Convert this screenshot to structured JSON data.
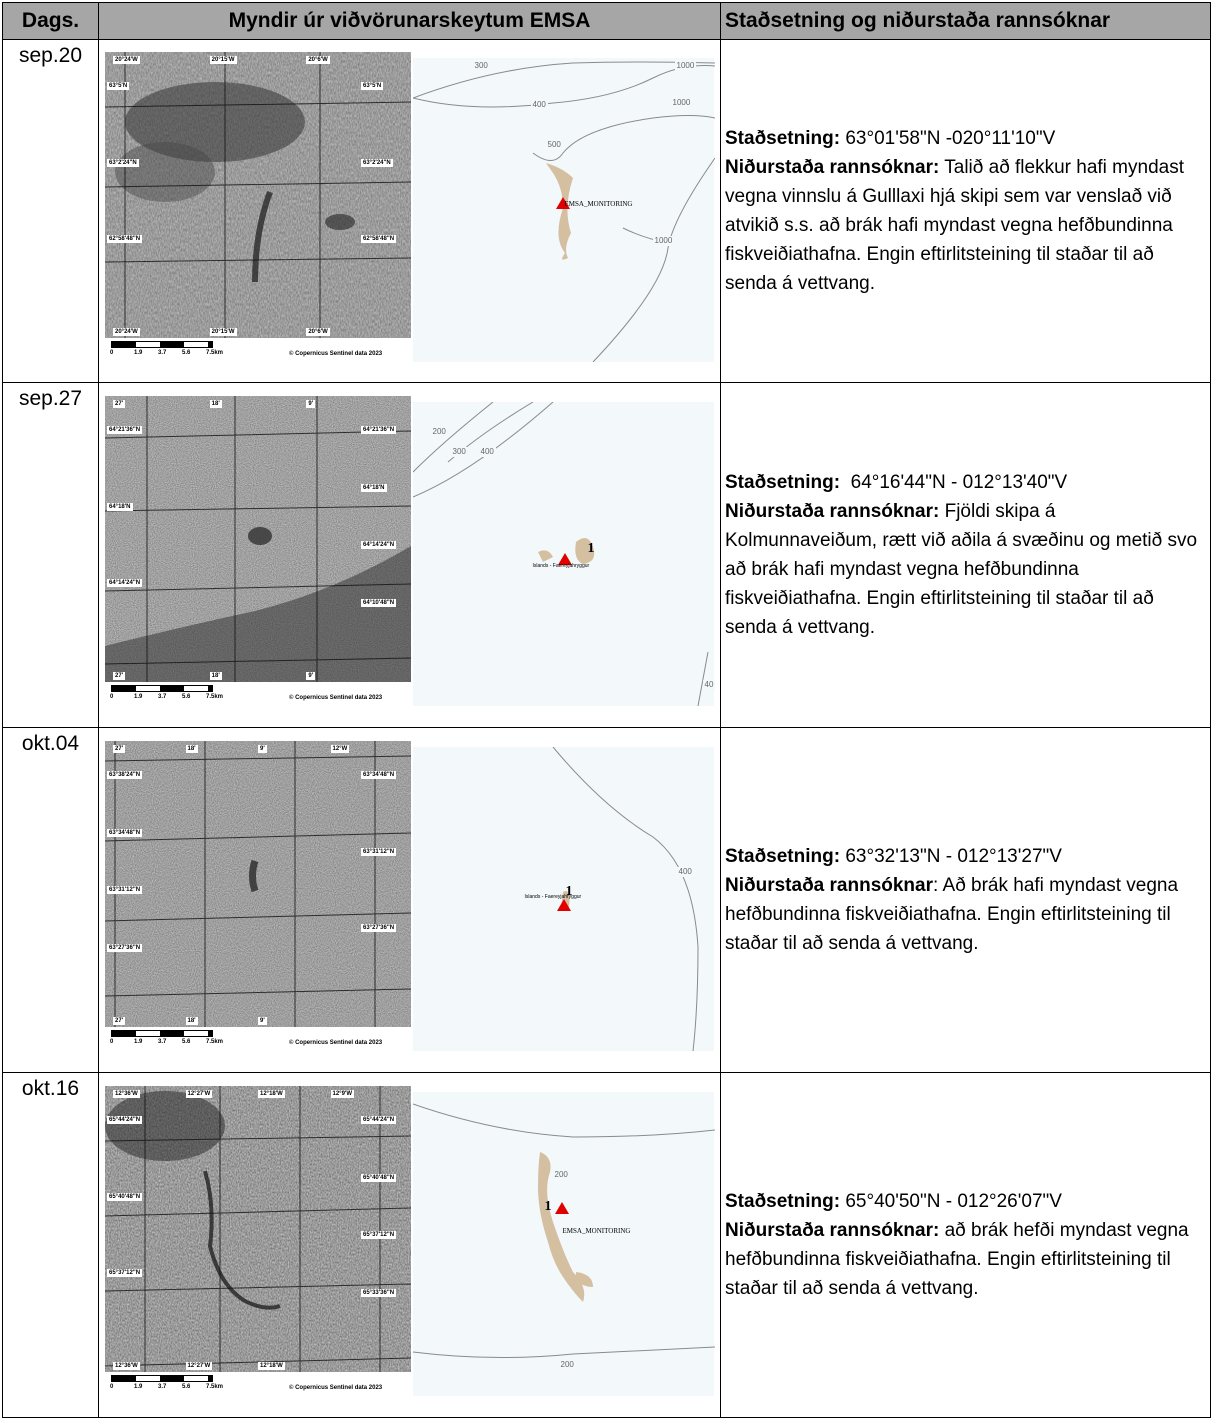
{
  "headers": {
    "date": "Dags.",
    "images": "Myndir úr viðvörunarskeytum EMSA",
    "result": "Staðsetning og niðurstaða rannsóknar"
  },
  "common": {
    "copyright": "© Copernicus Sentinel data 2023",
    "scale": [
      "0",
      "1.9",
      "3.7",
      "5.6",
      "7.5km"
    ],
    "loc_label": "Staðsetning:",
    "res_label": "Niðurstaða rannsóknar:",
    "res_label_nocolon": "Niðurstaða rannsóknar"
  },
  "rows": [
    {
      "date": "sep.20",
      "coords": "63°01'58\"N  -020°11'10\"V",
      "result": "Talið að flekkur hafi myndast vegna vinnslu á Gulllaxi hjá skipi sem var venslað við atvikið s.s. að brák hafi myndast vegna hefðbundinna fiskveiðiathafna. Engin eftirlitsteining til staðar til að senda á vettvang.",
      "sar_top": [
        "20°24'W",
        "20°15'W",
        "20°6'W"
      ],
      "sar_bottom": [
        "20°24'W",
        "20°15'W",
        "20°6'W"
      ],
      "sar_left": [
        "63°5'N",
        "63°2'24\"N",
        "62°58'48\"N"
      ],
      "sar_right": [
        "63°5'N",
        "63°2'24\"N",
        "62°58'48\"N"
      ],
      "map_contours": [
        "300",
        "400",
        "500",
        "1000",
        "1000",
        "1000"
      ],
      "map_label": "EMSA_MONITORING"
    },
    {
      "date": "sep.27",
      "coords": "64°16'44\"N - 012°13'40\"V",
      "result": "Fjöldi skipa á Kolmunnaveiðum, rætt við aðila á svæðinu og metið svo að brák hafi myndast vegna hefðbundinna fiskveiðiathafna. Engin eftirlitsteining til staðar til að senda á vettvang.",
      "sar_top": [
        "27'",
        "18'",
        "9'"
      ],
      "sar_bottom": [
        "27'",
        "18'",
        "9'"
      ],
      "sar_left": [
        "64°21'36\"N",
        "64°18'N",
        "64°14'24\"N"
      ],
      "sar_right": [
        "64°21'36\"N",
        "64°18'N",
        "64°14'24\"N",
        "64°10'48\"N"
      ],
      "map_contours": [
        "200",
        "300",
        "400",
        "40"
      ],
      "map_label": "Islands - Faereyjahryggur",
      "map_number": "1"
    },
    {
      "date": "okt.04",
      "coords": "63°32'13\"N - 012°13'27\"V",
      "result": "Að brák hafi myndast vegna hefðbundinna fiskveiðiathafna. Engin eftirlitsteining til staðar til að senda á vettvang.",
      "sar_top": [
        "27'",
        "18'",
        "9'",
        "12°W"
      ],
      "sar_bottom": [
        "27'",
        "18'",
        "9'"
      ],
      "sar_left": [
        "63°38'24\"N",
        "63°34'48\"N",
        "63°31'12\"N",
        "63°27'36\"N"
      ],
      "sar_right": [
        "63°34'48\"N",
        "63°31'12\"N",
        "63°27'36\"N"
      ],
      "map_contours": [
        "400"
      ],
      "map_label": "Islands - Faereyjahryggur",
      "map_number": "1"
    },
    {
      "date": "okt.16",
      "coords": "65°40'50\"N - 012°26'07\"V",
      "result": "að brák hefði myndast vegna hefðbundinna fiskveiðiathafna. Engin eftirlitsteining til staðar til að senda á vettvang.",
      "sar_top": [
        "12°36'W",
        "12°27'W",
        "12°18'W",
        "12°9'W"
      ],
      "sar_bottom": [
        "12°36'W",
        "12°27'W",
        "12°18'W"
      ],
      "sar_left": [
        "65°44'24\"N",
        "65°40'48\"N",
        "65°37'12\"N"
      ],
      "sar_right": [
        "65°44'24\"N",
        "65°40'48\"N",
        "65°37'12\"N",
        "65°33'36\"N"
      ],
      "map_contours": [
        "200",
        "200"
      ],
      "map_label": "EMSA_MONITORING",
      "map_number": "1"
    }
  ]
}
